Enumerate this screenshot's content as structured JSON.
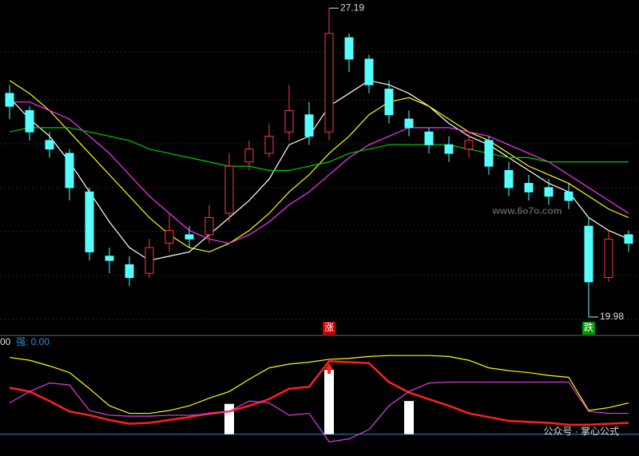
{
  "chart_data": [
    {
      "type": "candlestick",
      "ylim": [
        19.55,
        27.38
      ],
      "up_color": "#ff3b3b",
      "down_color": "#54ffff",
      "candles": {
        "open": [
          25.2,
          24.8,
          24.1,
          23.8,
          22.9,
          21.4,
          21.2,
          21.0,
          21.7,
          21.9,
          21.9,
          22.4,
          23.6,
          23.8,
          24.3,
          24.7,
          24.3,
          26.5,
          26.0,
          25.3,
          24.6,
          24.3,
          24.0,
          23.9,
          24.1,
          23.4,
          23.1,
          23.0,
          22.9,
          22.1,
          20.9,
          21.9
        ],
        "high": [
          25.4,
          24.9,
          24.3,
          23.9,
          23.0,
          21.6,
          21.4,
          21.8,
          22.4,
          22.1,
          22.6,
          23.8,
          24.1,
          24.5,
          25.4,
          25.0,
          27.19,
          26.6,
          26.1,
          25.5,
          24.8,
          24.4,
          24.2,
          24.3,
          24.2,
          23.6,
          23.3,
          23.2,
          23.1,
          22.3,
          22.0,
          22.0
        ],
        "low": [
          24.6,
          24.1,
          23.7,
          22.7,
          21.3,
          21.0,
          20.7,
          20.9,
          21.5,
          21.6,
          21.7,
          22.2,
          23.4,
          23.7,
          24.1,
          24.0,
          24.1,
          25.7,
          25.2,
          24.5,
          24.2,
          23.8,
          23.6,
          23.7,
          23.3,
          22.8,
          22.7,
          22.6,
          22.5,
          19.98,
          20.8,
          21.5
        ],
        "close": [
          24.9,
          24.3,
          23.9,
          23.0,
          21.5,
          21.3,
          20.9,
          21.6,
          22.0,
          21.8,
          22.3,
          23.5,
          23.9,
          24.2,
          24.8,
          24.2,
          26.6,
          26.0,
          25.4,
          24.7,
          24.4,
          24.0,
          23.8,
          24.1,
          23.5,
          23.0,
          22.9,
          22.8,
          22.7,
          20.8,
          21.8,
          21.7
        ]
      },
      "series": [
        {
          "color": "#ffffff",
          "values": [
            25.1,
            24.6,
            24.2,
            23.6,
            22.9,
            22.2,
            21.6,
            21.3,
            21.4,
            21.5,
            21.9,
            22.3,
            22.7,
            23.2,
            24.0,
            24.2,
            24.9,
            25.2,
            25.5,
            25.4,
            25.2,
            24.9,
            24.5,
            24.2,
            24.0,
            23.7,
            23.4,
            23.1,
            22.9,
            22.3,
            22.0,
            21.8
          ]
        },
        {
          "color": "#ffff00",
          "values": [
            25.5,
            25.2,
            24.8,
            24.3,
            23.8,
            23.3,
            22.8,
            22.3,
            21.9,
            21.6,
            21.5,
            21.7,
            22.0,
            22.4,
            22.9,
            23.3,
            23.8,
            24.2,
            24.7,
            25.0,
            25.1,
            24.9,
            24.6,
            24.3,
            24.1,
            23.8,
            23.5,
            23.3,
            23.1,
            22.8,
            22.5,
            22.3
          ]
        },
        {
          "color": "#ff33ff",
          "values": [
            25.0,
            25.0,
            24.8,
            24.6,
            24.2,
            23.8,
            23.3,
            22.8,
            22.4,
            22.0,
            21.8,
            21.7,
            21.9,
            22.2,
            22.6,
            22.9,
            23.3,
            23.7,
            24.0,
            24.2,
            24.4,
            24.4,
            24.4,
            24.3,
            24.2,
            24.0,
            23.8,
            23.6,
            23.3,
            23.0,
            22.7,
            22.4
          ]
        },
        {
          "color": "#00cc00",
          "values": [
            24.3,
            24.4,
            24.4,
            24.4,
            24.3,
            24.2,
            24.1,
            23.9,
            23.8,
            23.7,
            23.6,
            23.5,
            23.5,
            23.4,
            23.4,
            23.5,
            23.6,
            23.8,
            23.9,
            24.0,
            24.0,
            24.0,
            24.0,
            23.9,
            23.8,
            23.7,
            23.7,
            23.6,
            23.6,
            23.6,
            23.6,
            23.6
          ]
        }
      ],
      "markers": [
        {
          "label": "涨",
          "index": 16,
          "color": "#cc0000"
        },
        {
          "label": "跌",
          "index": 29,
          "color": "#009900"
        }
      ],
      "watermark": "www.6o7o.com"
    },
    {
      "type": "line",
      "header": [
        "00",
        "强: 0.00"
      ],
      "ylim": [
        -23,
        100
      ],
      "series": [
        {
          "color": "#ffff00",
          "values": [
            81,
            78,
            72,
            65,
            48,
            30,
            22,
            22,
            25,
            30,
            38,
            45,
            58,
            70,
            74,
            76,
            79,
            80,
            82,
            83,
            83,
            83,
            82,
            78,
            70,
            67,
            65,
            62,
            60,
            25,
            28,
            33
          ]
        },
        {
          "color": "#ff2020",
          "values": [
            49,
            45,
            35,
            24,
            20,
            15,
            11,
            12,
            15,
            18,
            22,
            24,
            30,
            37,
            48,
            50,
            77,
            76,
            75,
            55,
            44,
            37,
            30,
            22,
            18,
            14,
            13,
            12,
            10,
            10,
            11,
            12
          ]
        },
        {
          "color": "#e040e0",
          "values": [
            33,
            45,
            54,
            52,
            25,
            20,
            19,
            19,
            20,
            20,
            21,
            24,
            35,
            33,
            20,
            22,
            -8,
            -5,
            5,
            30,
            45,
            54,
            55,
            55,
            55,
            55,
            55,
            55,
            55,
            24,
            22,
            22
          ]
        }
      ],
      "bars": {
        "index": [
          11,
          16,
          20
        ],
        "values": [
          32,
          68,
          35
        ],
        "color": "#ffffff"
      },
      "baseline_color": "#2a8fd6",
      "footer": "公众号 · 掌心公式"
    }
  ]
}
